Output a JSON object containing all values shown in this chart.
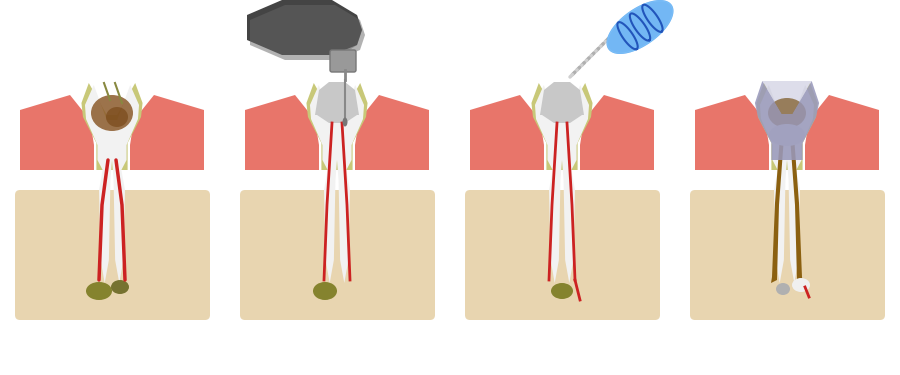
{
  "bg": "#ffffff",
  "bone_bg": "#e8d5b0",
  "gum_pink": "#e8756a",
  "gum_light": "#f0a090",
  "tooth_white": "#f2f2f2",
  "tooth_shadow": "#d8d8d8",
  "enamel_olive": "#b8b86a",
  "enamel_olive2": "#c8c878",
  "decay_brown": "#8b5a2b",
  "decay_dark": "#7a4a1a",
  "pulp_red": "#cc3333",
  "pulp_dark": "#aa2222",
  "canal_red": "#cc2222",
  "infect_olive": "#7a7a20",
  "infect_dark": "#5a5a10",
  "drill_body_dark": "#555555",
  "drill_body_mid": "#888888",
  "drill_body_light": "#cccccc",
  "drill_head_light": "#c0c0c0",
  "drill_head_dark": "#909090",
  "file_blue": "#66aaee",
  "file_blue2": "#88ccff",
  "file_ring": "#2255bb",
  "file_shaft": "#b0b0b0",
  "crown_purple": "#9999bb",
  "crown_purple2": "#aaaacc",
  "fill_brown": "#8b6010",
  "fill_brown2": "#a07020",
  "fill_white": "#e0e0e0",
  "apex_white": "#f0f0f0",
  "apex_gray": "#b0b0b0",
  "nerve_red": "#cc2020",
  "root_line": "#cc3333"
}
